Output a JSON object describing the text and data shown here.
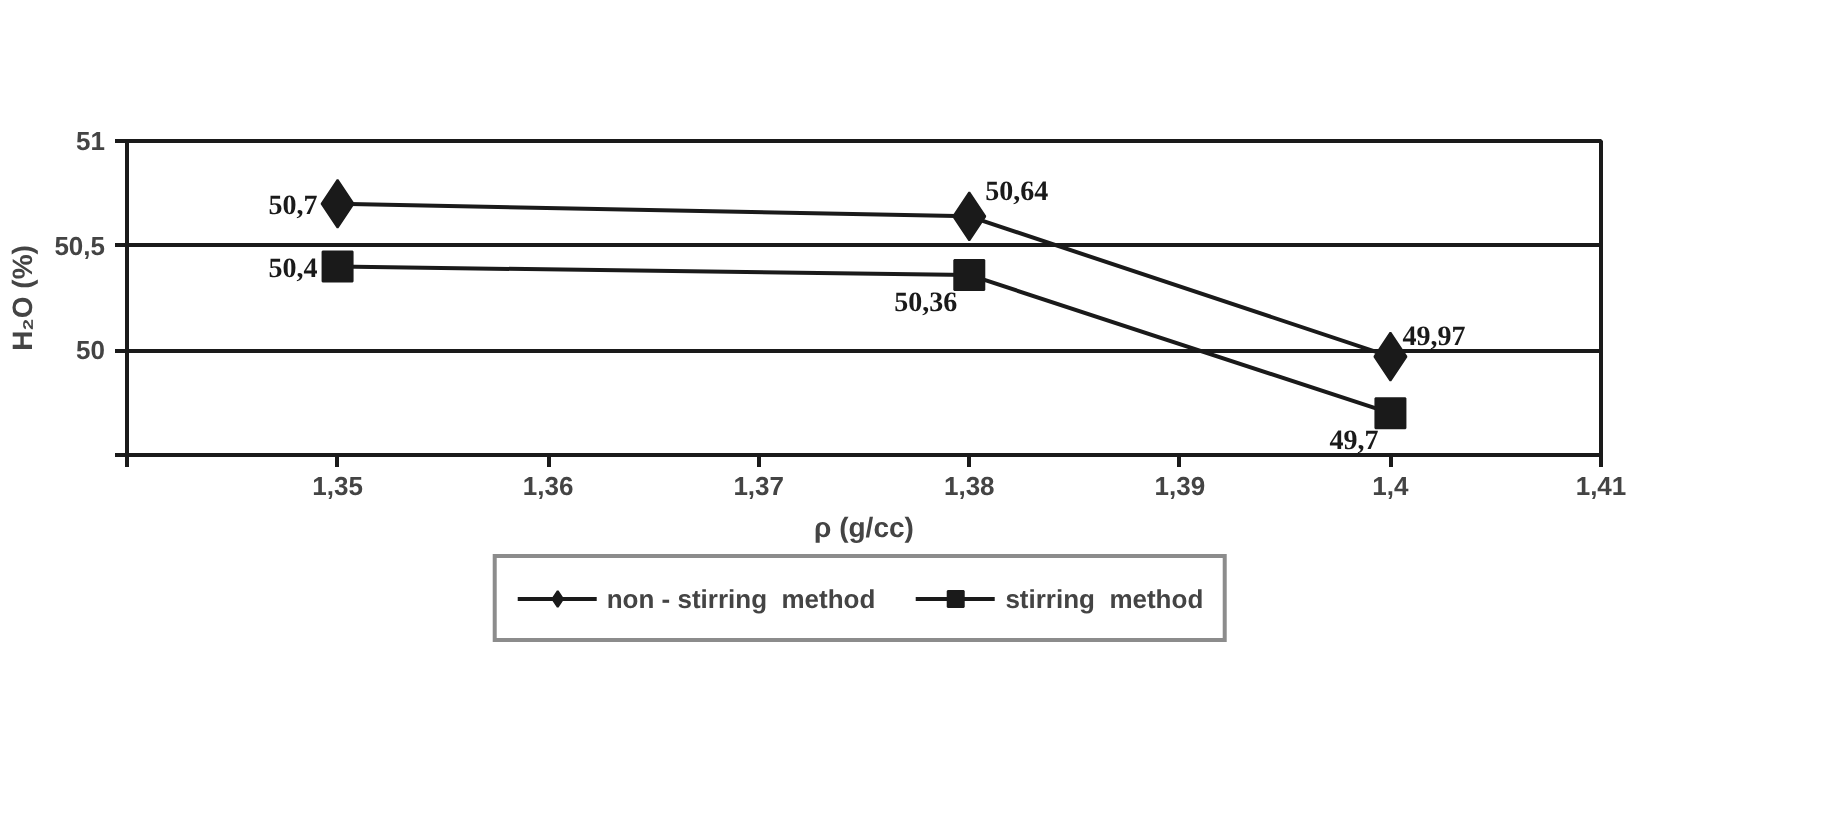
{
  "chart_data": {
    "type": "line",
    "xlabel": "ρ (g/cc)",
    "ylabel": "H₂O (%)",
    "series": [
      {
        "name": "non - stirring  method",
        "color": "#1a1a1a",
        "marker": "diamond",
        "x": [
          1.35,
          1.38,
          1.4
        ],
        "values": [
          50.7,
          50.64,
          49.97
        ],
        "value_labels": [
          "50,7",
          "50,64",
          "49,97"
        ]
      },
      {
        "name": "stirring  method",
        "color": "#1a1a1a",
        "marker": "square",
        "x": [
          1.35,
          1.38,
          1.4
        ],
        "values": [
          50.4,
          50.36,
          49.7
        ],
        "value_labels": [
          "50,4",
          "50,36",
          "49,7"
        ]
      }
    ],
    "xlim": [
      1.34,
      1.41
    ],
    "xticks": [
      {
        "value": 1.34,
        "label": null
      },
      {
        "value": 1.35,
        "label": "1,35"
      },
      {
        "value": 1.36,
        "label": "1,36"
      },
      {
        "value": 1.37,
        "label": "1,37"
      },
      {
        "value": 1.38,
        "label": "1,38"
      },
      {
        "value": 1.39,
        "label": "1,39"
      },
      {
        "value": 1.4,
        "label": "1,4"
      },
      {
        "value": 1.41,
        "label": "1,41"
      }
    ],
    "ylim": [
      49.5,
      51
    ],
    "yticks": [
      {
        "value": 49.5,
        "label": null
      },
      50,
      {
        "value": 50.5,
        "label": "50,5"
      },
      51
    ],
    "grid": "y",
    "legend": "bottom",
    "line_style": "solid"
  }
}
